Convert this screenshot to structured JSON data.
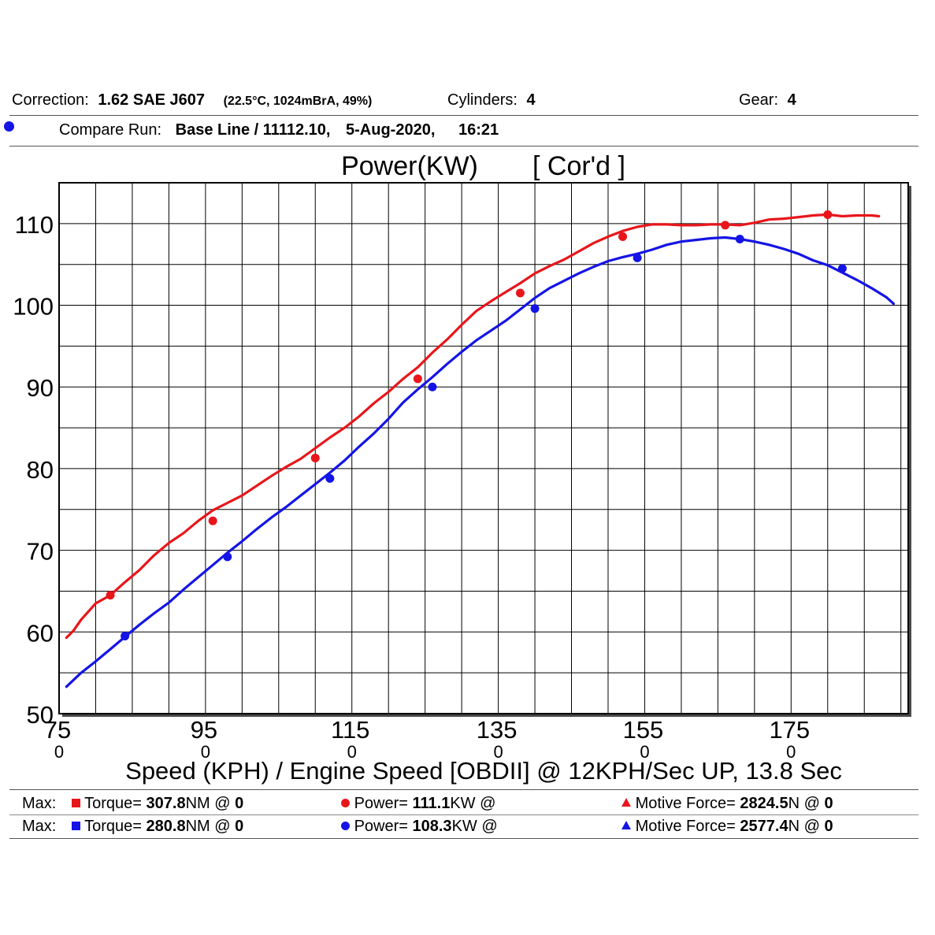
{
  "header": {
    "correction_label": "Correction:",
    "correction_value": "1.62 SAE J607",
    "conditions": "(22.5°C, 1024mBrA, 49%)",
    "cylinders_label": "Cylinders:",
    "cylinders_value": "4",
    "gear_label": "Gear:",
    "gear_value": "4",
    "compare_label": "Compare Run:",
    "compare_value": "Base Line / 11112.10,",
    "compare_date": "5-Aug-2020,",
    "compare_time": "16:21"
  },
  "colors": {
    "red": "#e8161b",
    "blue": "#1414e6",
    "grid": "#000000"
  },
  "chart_data": {
    "type": "line",
    "title_main": "Power(KW)",
    "title_sub": "[ Cor'd ]",
    "xlabel": "Speed (KPH) / Engine Speed [OBDII] @ 12KPH/Sec UP, 13.8 Sec",
    "ylabel": "",
    "xlim": [
      75,
      191
    ],
    "ylim": [
      50,
      115
    ],
    "x_ticks": [
      75,
      95,
      115,
      135,
      155,
      175
    ],
    "x_ticks_secondary": [
      "0",
      "0",
      "0",
      "0",
      "0",
      "0"
    ],
    "y_ticks": [
      50,
      60,
      70,
      80,
      90,
      100,
      110
    ],
    "grid": true,
    "series": [
      {
        "color": "#e8161b",
        "points": [
          [
            76,
            59.3
          ],
          [
            77,
            60.2
          ],
          [
            78,
            61.5
          ],
          [
            80,
            63.5
          ],
          [
            82,
            64.5
          ],
          [
            84,
            66.1
          ],
          [
            86,
            67.6
          ],
          [
            88,
            69.4
          ],
          [
            90,
            70.9
          ],
          [
            92,
            72.1
          ],
          [
            94,
            73.6
          ],
          [
            96,
            74.9
          ],
          [
            98,
            75.8
          ],
          [
            100,
            76.7
          ],
          [
            102,
            77.9
          ],
          [
            104,
            79.1
          ],
          [
            106,
            80.2
          ],
          [
            108,
            81.2
          ],
          [
            110,
            82.5
          ],
          [
            112,
            83.8
          ],
          [
            114,
            85.0
          ],
          [
            116,
            86.4
          ],
          [
            118,
            88.0
          ],
          [
            120,
            89.4
          ],
          [
            122,
            91.0
          ],
          [
            124,
            92.4
          ],
          [
            126,
            94.2
          ],
          [
            128,
            95.8
          ],
          [
            130,
            97.6
          ],
          [
            132,
            99.3
          ],
          [
            134,
            100.5
          ],
          [
            136,
            101.6
          ],
          [
            138,
            102.7
          ],
          [
            140,
            103.9
          ],
          [
            142,
            104.8
          ],
          [
            144,
            105.6
          ],
          [
            146,
            106.6
          ],
          [
            148,
            107.6
          ],
          [
            150,
            108.4
          ],
          [
            152,
            109.1
          ],
          [
            154,
            109.6
          ],
          [
            156,
            109.9
          ],
          [
            158,
            109.9
          ],
          [
            160,
            109.8
          ],
          [
            162,
            109.8
          ],
          [
            164,
            109.9
          ],
          [
            166,
            109.9
          ],
          [
            168,
            109.8
          ],
          [
            170,
            110.1
          ],
          [
            172,
            110.5
          ],
          [
            174,
            110.6
          ],
          [
            176,
            110.8
          ],
          [
            178,
            111.0
          ],
          [
            180,
            111.1
          ],
          [
            182,
            110.9
          ],
          [
            184,
            111.0
          ],
          [
            186,
            111.0
          ],
          [
            187,
            110.9
          ]
        ],
        "markers": [
          [
            82,
            64.5
          ],
          [
            96,
            73.6
          ],
          [
            110,
            81.3
          ],
          [
            124,
            91.0
          ],
          [
            138,
            101.5
          ],
          [
            152,
            108.4
          ],
          [
            166,
            109.8
          ],
          [
            180,
            111.1
          ]
        ]
      },
      {
        "color": "#1414e6",
        "points": [
          [
            76,
            53.3
          ],
          [
            78,
            55.0
          ],
          [
            80,
            56.4
          ],
          [
            82,
            57.9
          ],
          [
            84,
            59.4
          ],
          [
            86,
            60.9
          ],
          [
            88,
            62.3
          ],
          [
            90,
            63.6
          ],
          [
            92,
            65.2
          ],
          [
            94,
            66.7
          ],
          [
            96,
            68.2
          ],
          [
            98,
            69.7
          ],
          [
            100,
            71.1
          ],
          [
            102,
            72.6
          ],
          [
            104,
            74.0
          ],
          [
            106,
            75.3
          ],
          [
            108,
            76.7
          ],
          [
            110,
            78.1
          ],
          [
            112,
            79.5
          ],
          [
            114,
            81.0
          ],
          [
            116,
            82.7
          ],
          [
            118,
            84.3
          ],
          [
            120,
            86.1
          ],
          [
            122,
            88.1
          ],
          [
            124,
            89.7
          ],
          [
            126,
            91.2
          ],
          [
            128,
            92.8
          ],
          [
            130,
            94.3
          ],
          [
            132,
            95.7
          ],
          [
            134,
            96.9
          ],
          [
            136,
            98.1
          ],
          [
            138,
            99.5
          ],
          [
            140,
            100.9
          ],
          [
            142,
            102.1
          ],
          [
            144,
            103.0
          ],
          [
            146,
            103.9
          ],
          [
            148,
            104.7
          ],
          [
            150,
            105.4
          ],
          [
            152,
            105.9
          ],
          [
            154,
            106.3
          ],
          [
            156,
            106.8
          ],
          [
            158,
            107.4
          ],
          [
            160,
            107.8
          ],
          [
            162,
            108.0
          ],
          [
            164,
            108.2
          ],
          [
            166,
            108.3
          ],
          [
            168,
            108.1
          ],
          [
            170,
            107.8
          ],
          [
            172,
            107.4
          ],
          [
            174,
            106.9
          ],
          [
            176,
            106.3
          ],
          [
            178,
            105.5
          ],
          [
            180,
            104.9
          ],
          [
            182,
            104.0
          ],
          [
            184,
            103.1
          ],
          [
            186,
            102.1
          ],
          [
            188,
            101.0
          ],
          [
            189,
            100.2
          ]
        ],
        "markers": [
          [
            84,
            59.5
          ],
          [
            98,
            69.2
          ],
          [
            112,
            78.8
          ],
          [
            126,
            90.0
          ],
          [
            140,
            99.6
          ],
          [
            154,
            105.8
          ],
          [
            168,
            108.1
          ],
          [
            182,
            104.5
          ]
        ]
      }
    ]
  },
  "footer": {
    "rows": [
      {
        "max_label": "Max:",
        "torque_label": "Torque=",
        "torque_value": "307.8",
        "torque_unit": "NM @",
        "torque_at": "0",
        "power_label": "Power=",
        "power_value": "111.1",
        "power_unit": "KW @",
        "force_label": "Motive Force=",
        "force_value": "2824.5",
        "force_unit": "N @",
        "force_at": "0"
      },
      {
        "max_label": "Max:",
        "torque_label": "Torque=",
        "torque_value": "280.8",
        "torque_unit": "NM @",
        "torque_at": "0",
        "power_label": "Power=",
        "power_value": "108.3",
        "power_unit": "KW @",
        "force_label": "Motive Force=",
        "force_value": "2577.4",
        "force_unit": "N @",
        "force_at": "0"
      }
    ]
  }
}
